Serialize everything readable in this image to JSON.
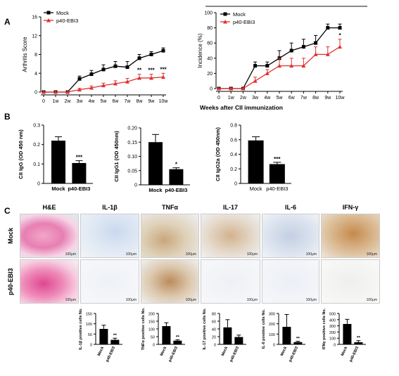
{
  "panels": {
    "a": "A",
    "b": "B",
    "c": "C"
  },
  "panelA": {
    "xcaption": "Weeks after CII immunization",
    "weeks": [
      "0",
      "1w",
      "2w",
      "3w",
      "4w",
      "5w",
      "6w",
      "7w",
      "8w",
      "9w",
      "10w"
    ],
    "left": {
      "ylabel": "Arthritis Score",
      "ylim": [
        0,
        16
      ],
      "yticks": [
        "0",
        "4",
        "8",
        "12",
        "16"
      ],
      "yvals": [
        0,
        4,
        8,
        12,
        16
      ]
    },
    "right": {
      "ylabel": "Incidence (%)",
      "ylim": [
        0,
        100
      ],
      "yticks": [
        "0",
        "20",
        "40",
        "60",
        "80",
        "100"
      ],
      "yvals": [
        0,
        20,
        40,
        60,
        80,
        100
      ]
    },
    "legend": {
      "mock": "Mock",
      "p40": "p40-EBI3"
    },
    "colors": {
      "mock": "#000000",
      "p40": "#e03030"
    }
  },
  "chart_data": [
    {
      "type": "line",
      "x": [
        "0",
        "1w",
        "2w",
        "3w",
        "4w",
        "5w",
        "6w",
        "7w",
        "8w",
        "9w",
        "10w"
      ],
      "ylabel": "Arthritis Score",
      "ylim": [
        0,
        16
      ],
      "series": [
        {
          "name": "Mock",
          "values": [
            0,
            0,
            0,
            2.8,
            3.8,
            4.8,
            5.5,
            5.3,
            7.2,
            8.0,
            8.8
          ],
          "errors": [
            0,
            0,
            0,
            0.6,
            0.8,
            1.0,
            1.0,
            1.2,
            0.8,
            0.6,
            0.6
          ]
        },
        {
          "name": "p40-EBI3",
          "values": [
            0,
            0,
            0,
            0.5,
            0.9,
            1.4,
            1.8,
            2.2,
            3.0,
            3.0,
            3.2
          ],
          "errors": [
            0,
            0,
            0,
            0.3,
            0.4,
            0.5,
            0.6,
            0.7,
            0.8,
            0.8,
            0.8
          ]
        }
      ],
      "annotations": [
        {
          "x": "8w",
          "text": "**"
        },
        {
          "x": "9w",
          "text": "***"
        },
        {
          "x": "10w",
          "text": "***"
        }
      ]
    },
    {
      "type": "line",
      "x": [
        "0",
        "1w",
        "2w",
        "3w",
        "4w",
        "5w",
        "6w",
        "7w",
        "8w",
        "9w",
        "10w"
      ],
      "ylabel": "Incidence (%)",
      "ylim": [
        0,
        100
      ],
      "series": [
        {
          "name": "Mock",
          "values": [
            0,
            0,
            0,
            30,
            30,
            40,
            50,
            55,
            60,
            80,
            80
          ],
          "errors": [
            0,
            0,
            0,
            5,
            5,
            10,
            10,
            10,
            10,
            5,
            5
          ]
        },
        {
          "name": "p40-EBI3",
          "values": [
            0,
            0,
            0,
            10,
            20,
            30,
            30,
            30,
            45,
            45,
            55
          ],
          "errors": [
            0,
            0,
            0,
            5,
            5,
            10,
            10,
            10,
            10,
            10,
            10
          ]
        }
      ],
      "annotations": [
        {
          "x": "10w",
          "text": "*"
        }
      ]
    },
    {
      "type": "bar",
      "categories": [
        "Mock",
        "p40-EBI3"
      ],
      "ylabel": "CII IgG (OD 450 nm)",
      "ylim": [
        0,
        0.3
      ],
      "yticks": [
        "0",
        "0.1",
        "0.2",
        "0.3"
      ],
      "values": [
        0.22,
        0.105
      ],
      "errors": [
        0.02,
        0.012
      ],
      "annotation": "***"
    },
    {
      "type": "bar",
      "categories": [
        "Mock",
        "p40-EBI3"
      ],
      "ylabel": "CII IgG1 (OD 450nm)",
      "ylim": [
        0,
        0.2
      ],
      "yticks": [
        "0",
        "0.05",
        "0.10",
        "0.15",
        "0.20"
      ],
      "values": [
        0.15,
        0.055
      ],
      "errors": [
        0.027,
        0.005
      ],
      "annotation": "*"
    },
    {
      "type": "bar",
      "categories": [
        "Mock",
        "p40-EBI3"
      ],
      "ylabel": "CII IgG2a (OD 450nm)",
      "ylim": [
        0,
        0.8
      ],
      "yticks": [
        "0",
        "0.2",
        "0.4",
        "0.6",
        "0.8"
      ],
      "values": [
        0.59,
        0.265
      ],
      "errors": [
        0.05,
        0.025
      ],
      "annotation": "***"
    },
    {
      "type": "bar",
      "categories": [
        "Mock",
        "p40-EBI3"
      ],
      "ylabel": "IL-1β positive cells No.",
      "ylim": [
        0,
        150
      ],
      "yticks": [
        "0",
        "50",
        "100",
        "150"
      ],
      "values": [
        75,
        22
      ],
      "errors": [
        18,
        8
      ],
      "annotation": "**"
    },
    {
      "type": "bar",
      "categories": [
        "Mock",
        "p40-EBI3"
      ],
      "ylabel": "TNFα positive cells No.",
      "ylim": [
        0,
        200
      ],
      "yticks": [
        "0",
        "50",
        "100",
        "150",
        "200"
      ],
      "values": [
        118,
        24
      ],
      "errors": [
        22,
        6
      ],
      "annotation": "**"
    },
    {
      "type": "bar",
      "categories": [
        "Mock",
        "p40-EBI3"
      ],
      "ylabel": "IL-17 positive cells No.",
      "ylim": [
        0,
        80
      ],
      "yticks": [
        "0",
        "20",
        "40",
        "60",
        "80"
      ],
      "values": [
        44,
        19
      ],
      "errors": [
        20,
        5
      ],
      "annotation": ""
    },
    {
      "type": "bar",
      "categories": [
        "Mock",
        "p40-EBI3"
      ],
      "ylabel": "IL-6 positive cells No.",
      "ylim": [
        0,
        300
      ],
      "yticks": [
        "0",
        "100",
        "200",
        "300"
      ],
      "values": [
        170,
        22
      ],
      "errors": [
        120,
        8
      ],
      "annotation": "**"
    },
    {
      "type": "bar",
      "categories": [
        "Mock",
        "p40-EBI3"
      ],
      "ylabel": "IFNγ positive cells No.",
      "ylim": [
        0,
        500
      ],
      "yticks": [
        "0",
        "100",
        "200",
        "300",
        "400",
        "500"
      ],
      "values": [
        330,
        35
      ],
      "errors": [
        75,
        25
      ],
      "annotation": "**"
    }
  ],
  "panelC": {
    "columns": [
      "H&E",
      "IL-1β",
      "TNFα",
      "IL-17",
      "IL-6",
      "IFN-γ"
    ],
    "rows": [
      "Mock",
      "p40-EBI3"
    ],
    "scale": "100μm"
  }
}
